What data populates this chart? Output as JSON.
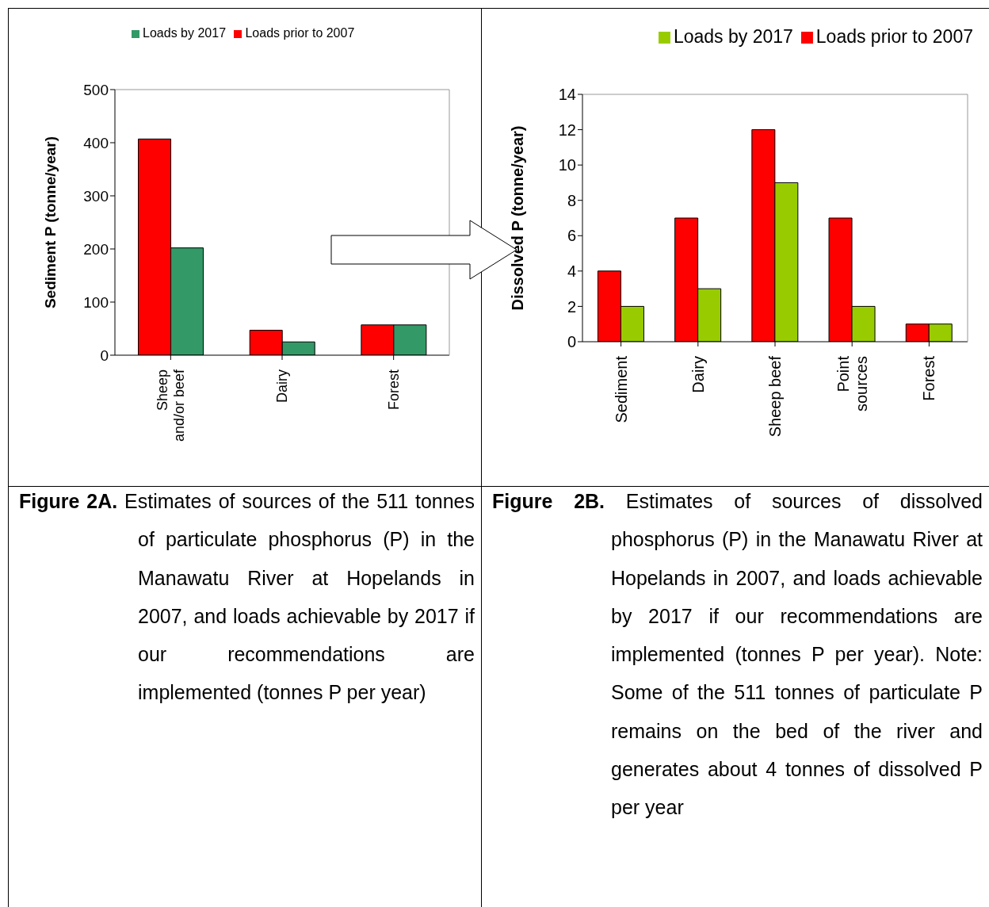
{
  "chart_data": [
    {
      "type": "bar",
      "categories": [
        "Sheep and/or beef",
        "Dairy",
        "Forest"
      ],
      "series": [
        {
          "name": "Loads prior to 2007",
          "color": "#ff0000",
          "values": [
            407,
            47,
            57
          ]
        },
        {
          "name": "Loads by 2017",
          "color": "#339966",
          "values": [
            202,
            25,
            57
          ]
        }
      ],
      "ylabel": "Sediment P (tonne/year)",
      "ylim": [
        0,
        500
      ],
      "yticks": [
        0,
        100,
        200,
        300,
        400,
        500
      ],
      "legend": "top",
      "annotations": [
        "Figure 2A.",
        "Estimates of sources of the 511 tonnes of particulate phosphorus (P) in the Manawatu River at Hopelands in 2007, and loads achievable by 2017 if our recommendations are implemented (tonnes P per year)"
      ]
    },
    {
      "type": "bar",
      "categories": [
        "Sediment",
        "Dairy",
        "Sheep beef",
        "Point sources",
        "Forest"
      ],
      "series": [
        {
          "name": "Loads prior to 2007",
          "color": "#ff0000",
          "values": [
            4,
            7,
            12,
            7,
            1
          ]
        },
        {
          "name": "Loads by 2017",
          "color": "#99cc00",
          "values": [
            2,
            3,
            9,
            2,
            1
          ]
        }
      ],
      "ylabel": "Dissolved P (tonne/year)",
      "ylim": [
        0,
        14
      ],
      "yticks": [
        0,
        2,
        4,
        6,
        8,
        10,
        12,
        14
      ],
      "legend": "top right",
      "annotations": [
        "Figure 2B.",
        "Estimates of sources of dissolved phosphorus (P) in the Manawatu River at Hopelands in 2007, and loads achievable by 2017 if our recommendations are implemented (tonnes P per year). Note: Some of the 511 tonnes of particulate P remains on the bed of the river and generates about 4 tonnes of dissolved P per year"
      ]
    }
  ]
}
